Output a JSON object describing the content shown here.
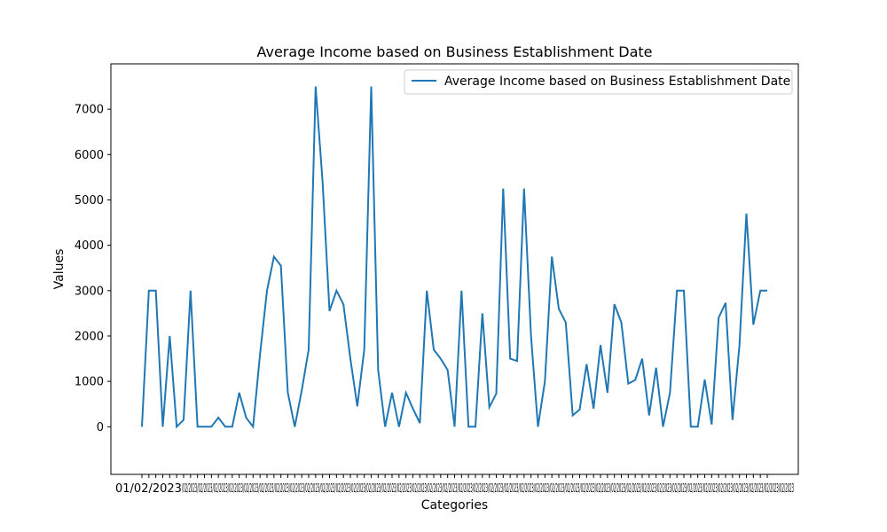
{
  "chart_data": {
    "type": "line",
    "title": "Average Income based on Business Establishment Date",
    "xlabel": "Categories",
    "ylabel": "Values",
    "ylim": [
      -1050,
      8000
    ],
    "yticks": [
      0,
      1000,
      2000,
      3000,
      4000,
      5000,
      6000,
      7000
    ],
    "legend_position": "top-right",
    "color": "#1f77b4",
    "x_tick_labels_visible": [
      "01/02/2023"
    ],
    "series": [
      {
        "name": "Average Income based on Business Establishment Date",
        "values": [
          0,
          3000,
          3000,
          0,
          2000,
          0,
          150,
          3000,
          0,
          0,
          0,
          200,
          0,
          0,
          750,
          200,
          0,
          1600,
          3000,
          3750,
          3550,
          750,
          0,
          800,
          1700,
          7500,
          5400,
          2550,
          3000,
          2700,
          1500,
          450,
          1700,
          7500,
          1250,
          0,
          750,
          0,
          750,
          400,
          80,
          3000,
          1700,
          1500,
          1250,
          0,
          3000,
          0,
          0,
          2500,
          430,
          730,
          5250,
          1500,
          1450,
          5250,
          2000,
          0,
          1000,
          3750,
          2600,
          2300,
          250,
          380,
          1380,
          400,
          1800,
          750,
          2700,
          2300,
          950,
          1030,
          1500,
          250,
          1300,
          0,
          750,
          3000,
          3000,
          0,
          0,
          1040,
          50,
          2400,
          2730,
          150,
          1800,
          4700,
          2250,
          3000,
          3000
        ]
      }
    ]
  }
}
